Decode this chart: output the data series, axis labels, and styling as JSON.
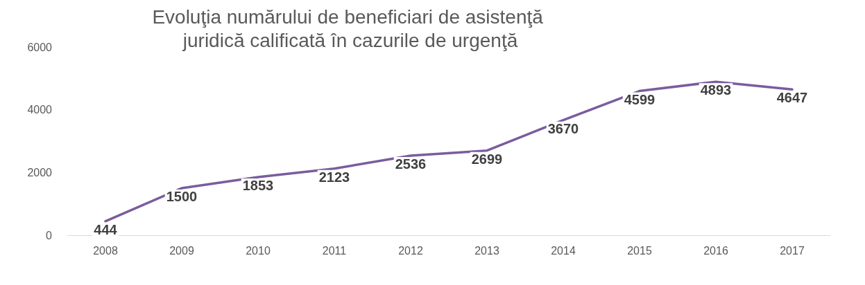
{
  "chart_data": {
    "type": "line",
    "title": "Evoluţia numărului de beneficiari de asistenţă juridică calificată în cazurile de urgenţă",
    "categories": [
      "2008",
      "2009",
      "2010",
      "2011",
      "2012",
      "2013",
      "2014",
      "2015",
      "2016",
      "2017"
    ],
    "series": [
      {
        "color": "#7a5c9e",
        "values": [
          444,
          1500,
          1853,
          2123,
          2536,
          2699,
          3670,
          4599,
          4893,
          4647
        ]
      }
    ],
    "ylim": [
      0,
      6000
    ],
    "yticks": [
      0,
      2000,
      4000,
      6000
    ],
    "grid": false,
    "line_style": "solid",
    "data_labels": true
  }
}
